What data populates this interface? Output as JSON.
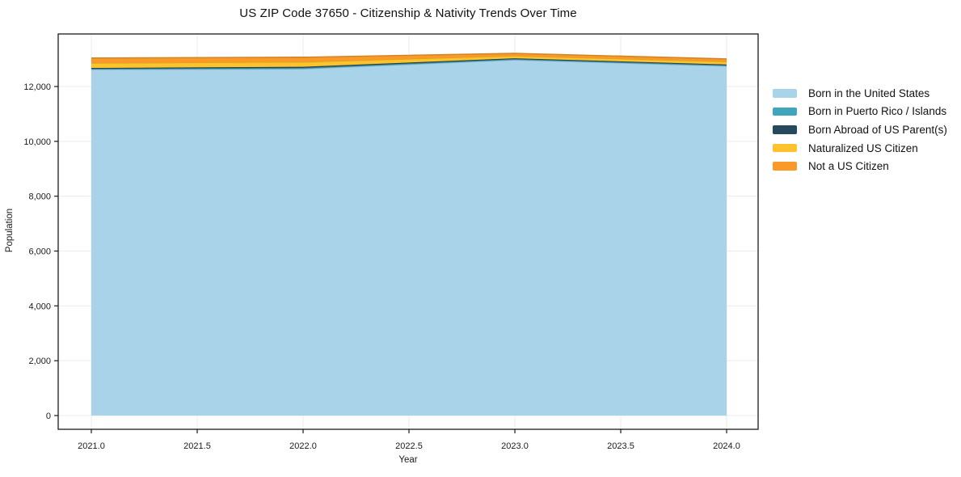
{
  "chart_data": {
    "type": "area",
    "stacked": true,
    "title": "US ZIP Code 37650 - Citizenship & Nativity Trends Over Time",
    "xlabel": "Year",
    "ylabel": "Population",
    "x": [
      2021,
      2022,
      2023,
      2024
    ],
    "series": [
      {
        "name": "Born in the United States",
        "color": "#a8d3e9",
        "values": [
          12618,
          12640,
          12970,
          12745
        ]
      },
      {
        "name": "Born in Puerto Rico / Islands",
        "color": "#41a5be",
        "values": [
          30,
          40,
          30,
          30
        ]
      },
      {
        "name": "Born Abroad of US Parent(s)",
        "color": "#26495e",
        "values": [
          30,
          38,
          30,
          30
        ]
      },
      {
        "name": "Naturalized US Citizen",
        "color": "#fcc32d",
        "values": [
          176,
          175,
          90,
          100
        ]
      },
      {
        "name": "Not a US Citizen",
        "color": "#f89928",
        "values": [
          186,
          176,
          90,
          102
        ]
      }
    ],
    "xticks": {
      "values": [
        2021.0,
        2021.5,
        2022.0,
        2022.5,
        2023.0,
        2023.5,
        2024.0
      ],
      "labels": [
        "2021.0",
        "2021.5",
        "2022.0",
        "2022.5",
        "2023.0",
        "2023.5",
        "2024.0"
      ]
    },
    "yticks": {
      "values": [
        0,
        2000,
        4000,
        6000,
        8000,
        10000,
        12000
      ],
      "labels": [
        "0",
        "2,000",
        "4,000",
        "6,000",
        "8,000",
        "10,000",
        "12,000"
      ]
    },
    "xlim": [
      2020.8435,
      2024.1488
    ],
    "ylim": [
      -501,
      13917
    ],
    "grid": true,
    "legend_position": "right",
    "grid_color": "#ebebeb",
    "axis_color": "#1a1a1a",
    "tick_label_color": "#1a1a1a"
  }
}
